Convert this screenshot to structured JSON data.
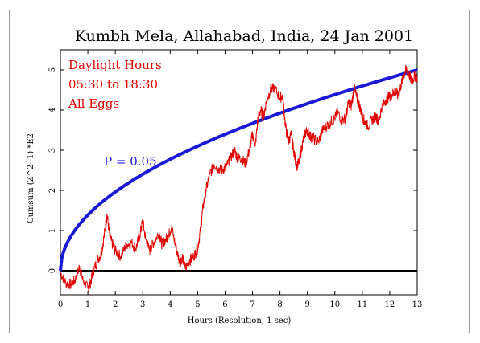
{
  "chart_data": {
    "type": "line",
    "title": "Kumbh Mela, Allahabad, India, 24 Jan 2001",
    "xlabel": "Hours (Resolution, 1 sec)",
    "ylabel": "Cumsum (Z^2 -1)  *E2",
    "xlim": [
      0,
      13
    ],
    "ylim": [
      -0.6,
      5.5
    ],
    "x_ticks": [
      "0",
      "1",
      "2",
      "3",
      "4",
      "5",
      "6",
      "7",
      "8",
      "9",
      "10",
      "11",
      "12",
      "13"
    ],
    "y_ticks": [
      "0",
      "1",
      "2",
      "3",
      "4",
      "5"
    ],
    "grid": false,
    "annotations": [
      "Daylight Hours",
      "05:30 to 18:30",
      "All Eggs"
    ],
    "significance_label": "P = 0.05",
    "colors": {
      "data": "#e00000",
      "envelope": "#1a1ad6",
      "zero_line": "#000000",
      "annotation": "#e00000"
    },
    "series": [
      {
        "values": [
          [
            0.0,
            -0.05
          ],
          [
            0.2,
            -0.3
          ],
          [
            0.4,
            -0.35
          ],
          [
            0.55,
            -0.2
          ],
          [
            0.7,
            0.1
          ],
          [
            0.8,
            -0.2
          ],
          [
            1.0,
            -0.45
          ],
          [
            1.1,
            -0.3
          ],
          [
            1.2,
            0.0
          ],
          [
            1.35,
            0.25
          ],
          [
            1.5,
            0.45
          ],
          [
            1.6,
            0.9
          ],
          [
            1.7,
            1.4
          ],
          [
            1.8,
            0.85
          ],
          [
            1.9,
            0.65
          ],
          [
            2.0,
            0.5
          ],
          [
            2.2,
            0.35
          ],
          [
            2.4,
            0.65
          ],
          [
            2.6,
            0.7
          ],
          [
            2.75,
            0.55
          ],
          [
            2.9,
            0.9
          ],
          [
            3.0,
            1.25
          ],
          [
            3.1,
            0.8
          ],
          [
            3.25,
            0.5
          ],
          [
            3.4,
            0.7
          ],
          [
            3.6,
            0.95
          ],
          [
            3.7,
            0.65
          ],
          [
            3.85,
            0.8
          ],
          [
            3.95,
            0.9
          ],
          [
            4.05,
            1.1
          ],
          [
            4.2,
            0.6
          ],
          [
            4.35,
            0.2
          ],
          [
            4.45,
            0.35
          ],
          [
            4.55,
            0.05
          ],
          [
            4.7,
            0.25
          ],
          [
            4.85,
            0.35
          ],
          [
            5.0,
            0.55
          ],
          [
            5.1,
            1.0
          ],
          [
            5.2,
            1.6
          ],
          [
            5.3,
            2.0
          ],
          [
            5.45,
            2.4
          ],
          [
            5.6,
            2.65
          ],
          [
            5.75,
            2.55
          ],
          [
            5.9,
            2.5
          ],
          [
            6.05,
            2.6
          ],
          [
            6.2,
            2.8
          ],
          [
            6.35,
            3.0
          ],
          [
            6.45,
            2.8
          ],
          [
            6.6,
            2.8
          ],
          [
            6.75,
            2.65
          ],
          [
            6.9,
            3.05
          ],
          [
            7.0,
            3.4
          ],
          [
            7.1,
            3.1
          ],
          [
            7.2,
            3.8
          ],
          [
            7.3,
            4.0
          ],
          [
            7.4,
            3.8
          ],
          [
            7.5,
            4.2
          ],
          [
            7.65,
            4.5
          ],
          [
            7.8,
            4.55
          ],
          [
            8.0,
            4.3
          ],
          [
            8.1,
            4.35
          ],
          [
            8.2,
            3.6
          ],
          [
            8.3,
            3.2
          ],
          [
            8.4,
            3.4
          ],
          [
            8.5,
            3.0
          ],
          [
            8.6,
            2.6
          ],
          [
            8.7,
            2.7
          ],
          [
            8.8,
            3.1
          ],
          [
            8.9,
            3.4
          ],
          [
            9.0,
            3.5
          ],
          [
            9.1,
            3.35
          ],
          [
            9.2,
            3.3
          ],
          [
            9.4,
            3.2
          ],
          [
            9.55,
            3.5
          ],
          [
            9.7,
            3.6
          ],
          [
            9.85,
            3.7
          ],
          [
            10.0,
            3.8
          ],
          [
            10.1,
            3.95
          ],
          [
            10.25,
            3.75
          ],
          [
            10.4,
            3.8
          ],
          [
            10.5,
            4.2
          ],
          [
            10.6,
            4.1
          ],
          [
            10.7,
            4.55
          ],
          [
            10.8,
            4.3
          ],
          [
            10.9,
            4.1
          ],
          [
            11.0,
            3.85
          ],
          [
            11.1,
            3.7
          ],
          [
            11.2,
            3.6
          ],
          [
            11.35,
            3.75
          ],
          [
            11.5,
            3.85
          ],
          [
            11.6,
            3.7
          ],
          [
            11.7,
            4.05
          ],
          [
            11.85,
            4.25
          ],
          [
            12.0,
            4.35
          ],
          [
            12.1,
            4.4
          ],
          [
            12.2,
            4.5
          ],
          [
            12.3,
            4.35
          ],
          [
            12.4,
            4.6
          ],
          [
            12.5,
            4.85
          ],
          [
            12.6,
            5.0
          ],
          [
            12.7,
            4.9
          ],
          [
            12.8,
            4.7
          ],
          [
            12.9,
            4.85
          ],
          [
            13.0,
            4.8
          ]
        ]
      }
    ]
  }
}
